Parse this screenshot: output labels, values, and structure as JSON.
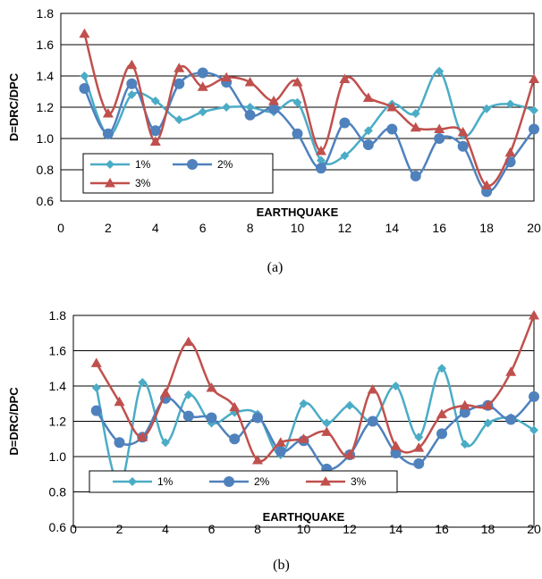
{
  "colors": {
    "s1": "#4BACC6",
    "s2": "#4F81BD",
    "s3": "#C0504D"
  },
  "chart_data": [
    {
      "type": "line",
      "caption": "(a)",
      "xlabel": "EARTHQUAKE",
      "ylabel": "D=DRC/DPC",
      "xlim": [
        0,
        20
      ],
      "ylim": [
        0.6,
        1.8
      ],
      "xticks": [
        "0",
        "2",
        "4",
        "6",
        "8",
        "10",
        "12",
        "14",
        "16",
        "18",
        "20"
      ],
      "yticks": [
        "0.6",
        "0.8",
        "1.0",
        "1.2",
        "1.4",
        "1.6",
        "1.8"
      ],
      "x": [
        1,
        2,
        3,
        4,
        5,
        6,
        7,
        8,
        9,
        10,
        11,
        12,
        13,
        14,
        15,
        16,
        17,
        18,
        19,
        20
      ],
      "series": [
        {
          "name": "1%",
          "marker": "diamond",
          "values": [
            1.4,
            1.02,
            1.28,
            1.24,
            1.12,
            1.17,
            1.2,
            1.2,
            1.17,
            1.23,
            0.86,
            0.89,
            1.05,
            1.22,
            1.16,
            1.43,
            1.02,
            1.19,
            1.22,
            1.18
          ]
        },
        {
          "name": "2%",
          "marker": "circle",
          "values": [
            1.32,
            1.03,
            1.35,
            1.05,
            1.35,
            1.42,
            1.36,
            1.15,
            1.19,
            1.03,
            0.81,
            1.1,
            0.96,
            1.06,
            0.76,
            1.0,
            0.95,
            0.66,
            0.85,
            1.06
          ]
        },
        {
          "name": "3%",
          "marker": "triangle",
          "values": [
            1.67,
            1.16,
            1.47,
            0.98,
            1.45,
            1.33,
            1.39,
            1.36,
            1.24,
            1.36,
            0.92,
            1.38,
            1.26,
            1.2,
            1.07,
            1.06,
            1.04,
            0.7,
            0.91,
            1.38
          ]
        }
      ],
      "legend": {
        "position": "bottom-left"
      }
    },
    {
      "type": "line",
      "caption": "(b)",
      "xlabel": "EARTHQUAKE",
      "ylabel": "D=DRC/DPC",
      "xlim": [
        0,
        20
      ],
      "ylim": [
        0.6,
        1.8
      ],
      "xticks": [
        "0",
        "2",
        "4",
        "6",
        "8",
        "10",
        "12",
        "14",
        "16",
        "18",
        "20"
      ],
      "yticks": [
        "0.6",
        "0.8",
        "1.0",
        "1.2",
        "1.4",
        "1.6",
        "1.8"
      ],
      "x": [
        1,
        2,
        3,
        4,
        5,
        6,
        7,
        8,
        9,
        10,
        11,
        12,
        13,
        14,
        15,
        16,
        17,
        18,
        19,
        20
      ],
      "series": [
        {
          "name": "1%",
          "marker": "diamond",
          "values": [
            1.39,
            0.84,
            1.42,
            1.08,
            1.35,
            1.19,
            1.25,
            1.24,
            1.01,
            1.3,
            1.19,
            1.29,
            1.2,
            1.4,
            1.11,
            1.5,
            1.07,
            1.19,
            1.22,
            1.15
          ]
        },
        {
          "name": "2%",
          "marker": "circle",
          "values": [
            1.26,
            1.08,
            1.11,
            1.33,
            1.23,
            1.22,
            1.1,
            1.22,
            1.03,
            1.09,
            0.93,
            1.01,
            1.2,
            1.02,
            0.96,
            1.13,
            1.25,
            1.29,
            1.21,
            1.34
          ]
        },
        {
          "name": "3%",
          "marker": "triangle",
          "values": [
            1.53,
            1.31,
            1.11,
            1.36,
            1.65,
            1.39,
            1.28,
            0.98,
            1.08,
            1.1,
            1.14,
            1.01,
            1.38,
            1.06,
            1.05,
            1.24,
            1.29,
            1.29,
            1.48,
            1.8
          ]
        }
      ],
      "legend": {
        "position": "bottom-center"
      }
    }
  ]
}
